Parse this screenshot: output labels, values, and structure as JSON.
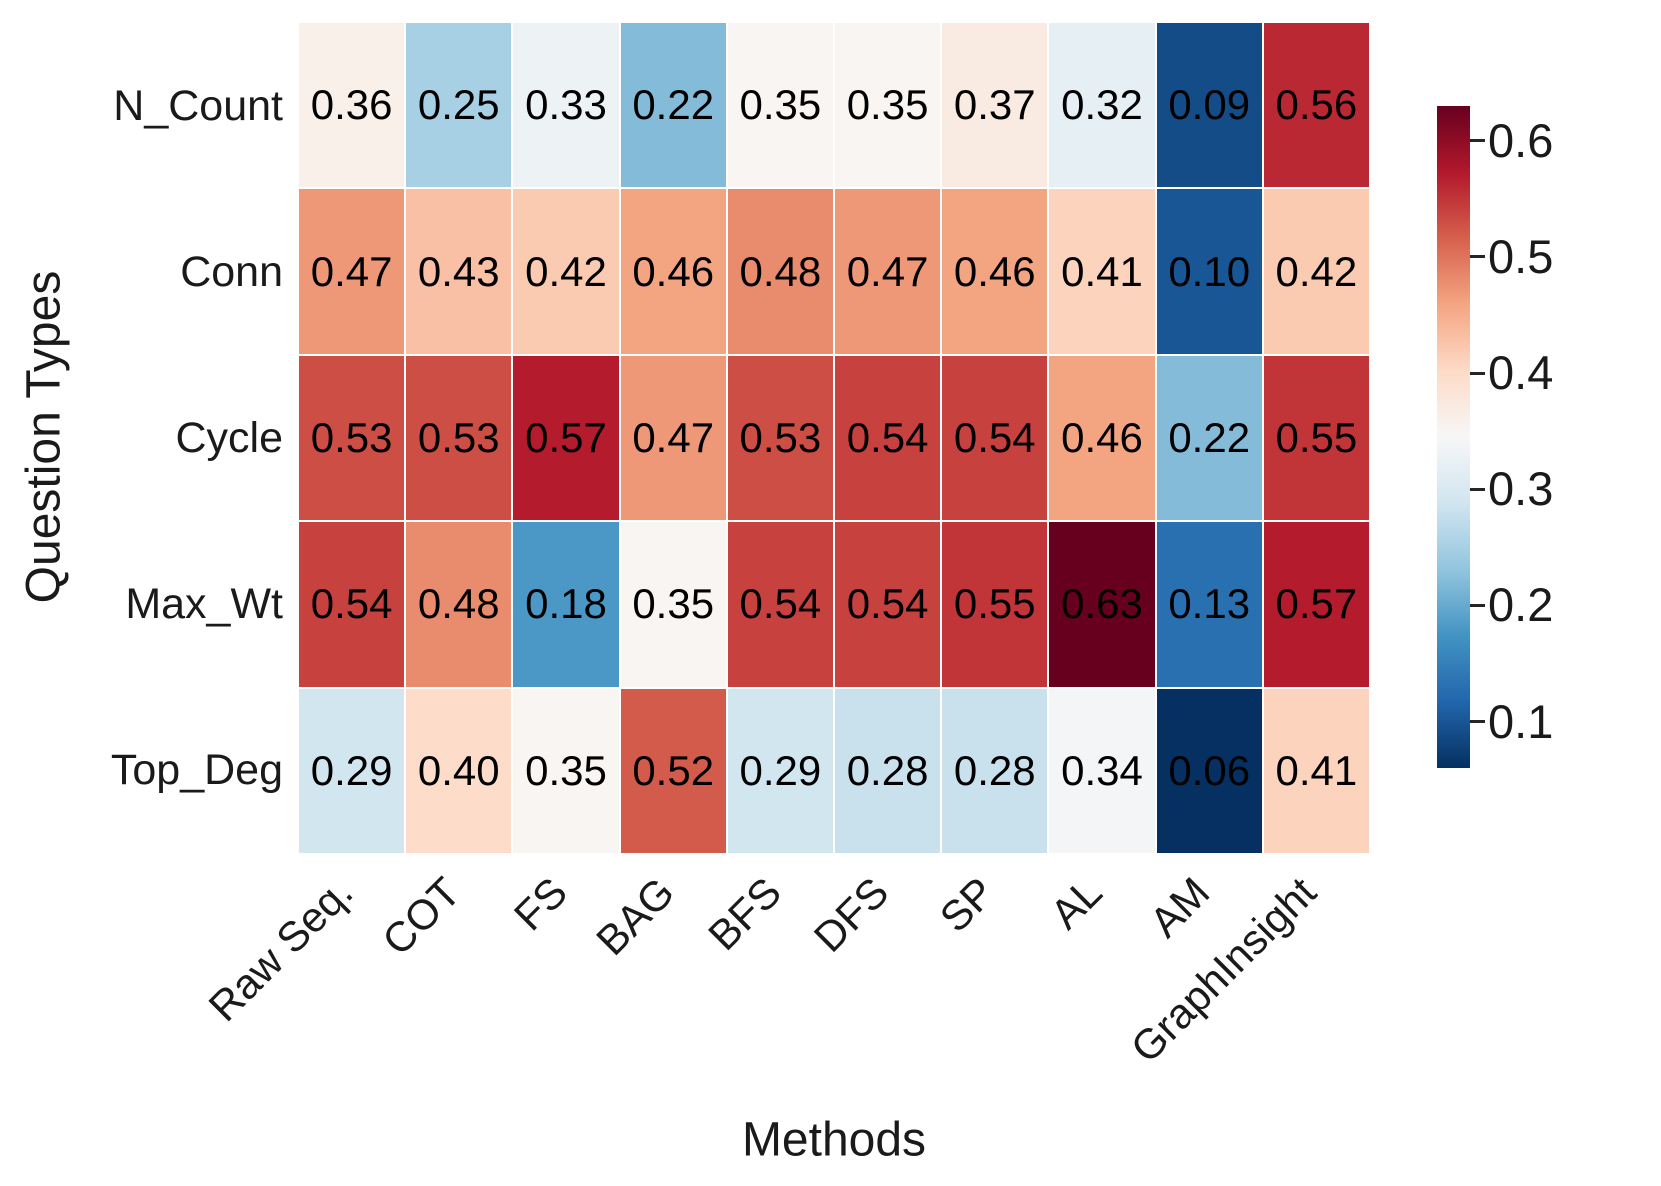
{
  "chart_data": {
    "type": "heatmap",
    "title": "",
    "xlabel": "Methods",
    "ylabel": "Question Types",
    "x_categories": [
      "Raw Seq.",
      "COT",
      "FS",
      "BAG",
      "BFS",
      "DFS",
      "SP",
      "AL",
      "AM",
      "GraphInsight"
    ],
    "y_categories": [
      "N_Count",
      "Conn",
      "Cycle",
      "Max_Wt",
      "Top_Deg"
    ],
    "series": [
      {
        "name": "N_Count",
        "values": [
          0.36,
          0.25,
          0.33,
          0.22,
          0.35,
          0.35,
          0.37,
          0.32,
          0.09,
          0.56
        ]
      },
      {
        "name": "Conn",
        "values": [
          0.47,
          0.43,
          0.42,
          0.46,
          0.48,
          0.47,
          0.46,
          0.41,
          0.1,
          0.42
        ]
      },
      {
        "name": "Cycle",
        "values": [
          0.53,
          0.53,
          0.57,
          0.47,
          0.53,
          0.54,
          0.54,
          0.46,
          0.22,
          0.55
        ]
      },
      {
        "name": "Max_Wt",
        "values": [
          0.54,
          0.48,
          0.18,
          0.35,
          0.54,
          0.54,
          0.55,
          0.63,
          0.13,
          0.57
        ]
      },
      {
        "name": "Top_Deg",
        "values": [
          0.29,
          0.4,
          0.35,
          0.52,
          0.29,
          0.28,
          0.28,
          0.34,
          0.06,
          0.41
        ]
      }
    ],
    "value_decimals": 2,
    "colormap": {
      "name": "RdBu_r",
      "vmin": 0.06,
      "vmax": 0.63,
      "anchors_low_to_high": [
        "#053061",
        "#2166ac",
        "#4393c3",
        "#92c5de",
        "#d1e5f0",
        "#f7f7f7",
        "#fddbc7",
        "#f4a582",
        "#d6604d",
        "#b2182b",
        "#67001f"
      ]
    },
    "colorbar_ticks": [
      0.6,
      0.5,
      0.4,
      0.3,
      0.2,
      0.1
    ],
    "gridline_color": "#ffffff",
    "cell_text_color": "#000000",
    "axis_text_color": "#1a1a1a"
  }
}
